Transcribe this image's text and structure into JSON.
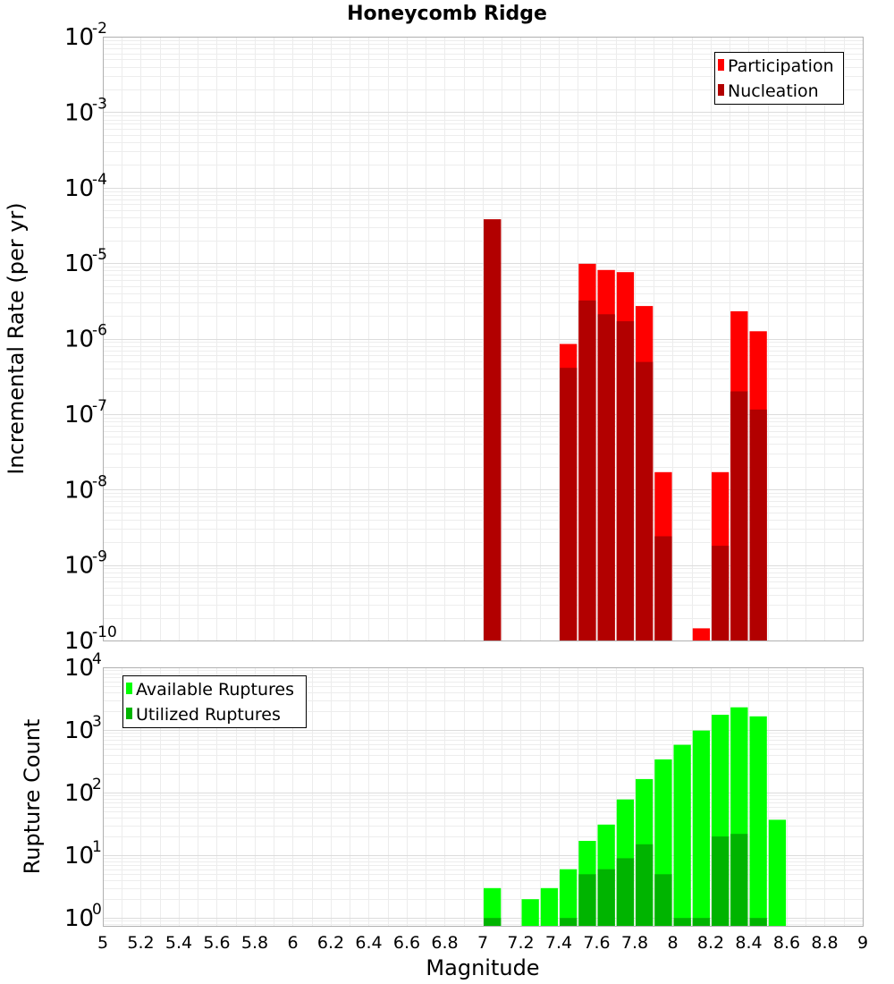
{
  "chart_data": {
    "title": "Honeycomb Ridge",
    "xlabel": "Magnitude",
    "x_ticks": [
      "5",
      "5.2",
      "5.4",
      "5.6",
      "5.8",
      "6",
      "6.2",
      "6.4",
      "6.6",
      "6.8",
      "7",
      "7.2",
      "7.4",
      "7.6",
      "7.8",
      "8",
      "8.2",
      "8.4",
      "8.6",
      "8.8",
      "9"
    ],
    "xlim": [
      5,
      9
    ],
    "bin_width": 0.1,
    "panels": [
      {
        "type": "bar",
        "ylabel": "Incremental Rate (per yr)",
        "y_scale": "log",
        "ylim": [
          1e-10,
          0.01
        ],
        "y_tick_exponents": [
          "-2",
          "-3",
          "-4",
          "-5",
          "-6",
          "-7",
          "-8",
          "-9",
          "-10"
        ],
        "grid": true,
        "legend_position": "top-right",
        "series": [
          {
            "name": "Participation",
            "color": "#ff0000",
            "x": [
              7.05,
              7.45,
              7.55,
              7.65,
              7.75,
              7.85,
              7.95,
              8.15,
              8.25,
              8.35,
              8.45
            ],
            "values": [
              3.8e-05,
              8.5e-07,
              9.8e-06,
              8.1e-06,
              7.6e-06,
              2.7e-06,
              1.7e-08,
              1.45e-10,
              1.7e-08,
              2.3e-06,
              1.25e-06
            ]
          },
          {
            "name": "Nucleation",
            "color": "#b20000",
            "x": [
              7.05,
              7.45,
              7.55,
              7.65,
              7.75,
              7.85,
              7.95,
              8.25,
              8.35,
              8.45
            ],
            "values": [
              3.8e-05,
              4.1e-07,
              3.2e-06,
              2.1e-06,
              1.7e-06,
              4.9e-07,
              2.4e-09,
              1.8e-09,
              2e-07,
              1.15e-07
            ]
          }
        ]
      },
      {
        "type": "bar",
        "ylabel": "Rupture Count",
        "y_scale": "log",
        "ylim": [
          0.75,
          10000
        ],
        "y_tick_exponents": [
          "4",
          "3",
          "2",
          "1",
          "0"
        ],
        "grid": true,
        "legend_position": "top-left",
        "series": [
          {
            "name": "Available Ruptures",
            "color": "#00ff00",
            "x": [
              7.05,
              7.25,
              7.35,
              7.45,
              7.55,
              7.65,
              7.75,
              7.85,
              7.95,
              8.05,
              8.15,
              8.25,
              8.35,
              8.45,
              8.55
            ],
            "values": [
              3,
              2,
              3,
              6,
              17,
              31,
              78,
              165,
              340,
              580,
              980,
              1750,
              2300,
              1650,
              37
            ]
          },
          {
            "name": "Utilized Ruptures",
            "color": "#00b400",
            "x": [
              7.05,
              7.45,
              7.55,
              7.65,
              7.75,
              7.85,
              7.95,
              8.05,
              8.15,
              8.25,
              8.35,
              8.45
            ],
            "values": [
              1,
              1,
              5,
              6,
              9,
              15,
              5,
              1,
              1,
              20,
              22,
              1
            ]
          }
        ]
      }
    ]
  }
}
